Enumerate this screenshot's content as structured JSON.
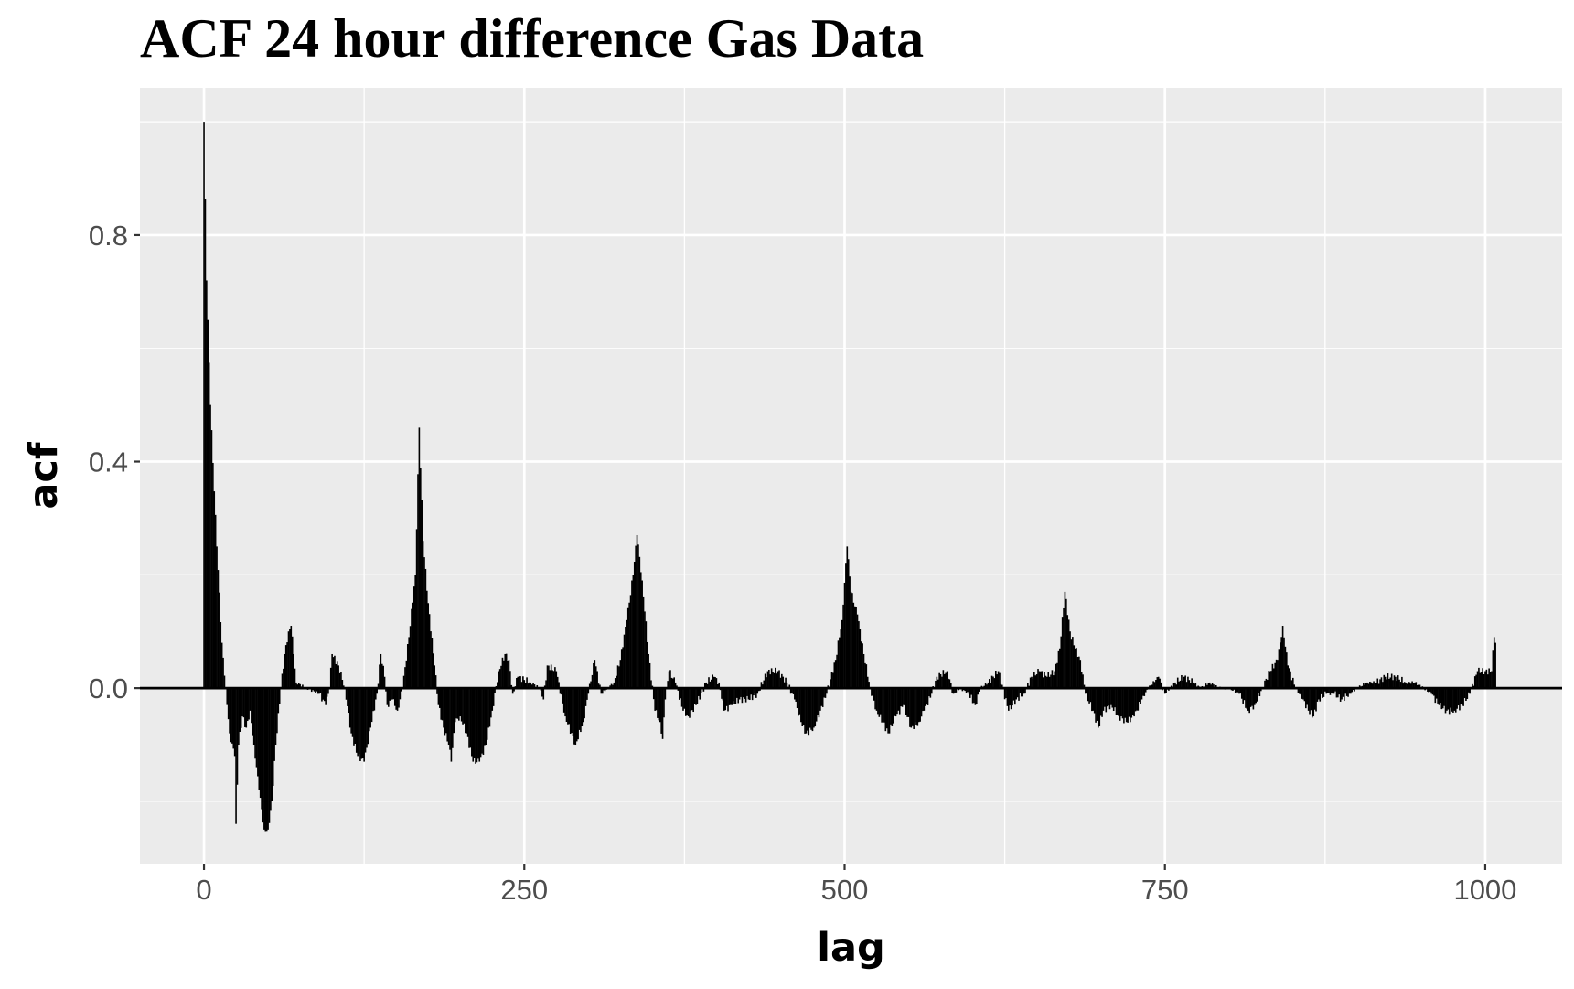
{
  "chart_data": {
    "type": "bar",
    "title": "ACF 24 hour difference Gas Data",
    "xlabel": "lag",
    "ylabel": "acf",
    "xlim": [
      -50,
      1060
    ],
    "ylim": [
      -0.31,
      1.06
    ],
    "x_ticks": [
      0,
      250,
      500,
      750,
      1000
    ],
    "x_tick_labels": [
      "0",
      "250",
      "500",
      "750",
      "1000"
    ],
    "y_ticks": [
      0.0,
      0.4,
      0.8
    ],
    "y_tick_labels": [
      "0.0",
      "0.4",
      "0.8"
    ],
    "grid": true,
    "legend": "none",
    "colors": {
      "bars": "#000000",
      "panel": "#ebebeb",
      "grid": "#ffffff"
    },
    "lags": "0-1008",
    "key_points": [
      [
        0,
        1.0
      ],
      [
        2,
        0.72
      ],
      [
        5,
        0.5
      ],
      [
        10,
        0.25
      ],
      [
        14,
        0.08
      ],
      [
        17,
        0.0
      ],
      [
        20,
        -0.08
      ],
      [
        24,
        -0.12
      ],
      [
        25,
        -0.24
      ],
      [
        27,
        -0.1
      ],
      [
        30,
        -0.05
      ],
      [
        33,
        -0.07
      ],
      [
        36,
        -0.04
      ],
      [
        39,
        -0.1
      ],
      [
        43,
        -0.18
      ],
      [
        47,
        -0.25
      ],
      [
        50,
        -0.25
      ],
      [
        53,
        -0.2
      ],
      [
        56,
        -0.1
      ],
      [
        60,
        0.0
      ],
      [
        63,
        0.06
      ],
      [
        66,
        0.1
      ],
      [
        68,
        0.11
      ],
      [
        70,
        0.06
      ],
      [
        72,
        0.01
      ],
      [
        80,
        0.0
      ],
      [
        90,
        -0.01
      ],
      [
        95,
        -0.03
      ],
      [
        98,
        0.0
      ],
      [
        100,
        0.06
      ],
      [
        105,
        0.04
      ],
      [
        110,
        0.0
      ],
      [
        115,
        -0.08
      ],
      [
        120,
        -0.12
      ],
      [
        125,
        -0.13
      ],
      [
        130,
        -0.07
      ],
      [
        135,
        -0.01
      ],
      [
        138,
        0.06
      ],
      [
        141,
        0.02
      ],
      [
        143,
        -0.03
      ],
      [
        147,
        -0.02
      ],
      [
        151,
        -0.04
      ],
      [
        155,
        0.0
      ],
      [
        160,
        0.09
      ],
      [
        165,
        0.2
      ],
      [
        168,
        0.46
      ],
      [
        171,
        0.26
      ],
      [
        175,
        0.15
      ],
      [
        180,
        0.04
      ],
      [
        183,
        -0.03
      ],
      [
        187,
        -0.07
      ],
      [
        191,
        -0.1
      ],
      [
        193,
        -0.13
      ],
      [
        196,
        -0.06
      ],
      [
        200,
        -0.05
      ],
      [
        205,
        -0.08
      ],
      [
        210,
        -0.13
      ],
      [
        215,
        -0.13
      ],
      [
        220,
        -0.1
      ],
      [
        225,
        -0.04
      ],
      [
        230,
        0.03
      ],
      [
        235,
        0.06
      ],
      [
        238,
        0.05
      ],
      [
        241,
        -0.01
      ],
      [
        245,
        0.02
      ],
      [
        255,
        0.01
      ],
      [
        262,
        0.0
      ],
      [
        265,
        -0.02
      ],
      [
        268,
        0.04
      ],
      [
        275,
        0.03
      ],
      [
        282,
        -0.05
      ],
      [
        290,
        -0.1
      ],
      [
        296,
        -0.06
      ],
      [
        300,
        -0.01
      ],
      [
        305,
        0.05
      ],
      [
        310,
        -0.01
      ],
      [
        315,
        0.0
      ],
      [
        320,
        0.01
      ],
      [
        325,
        0.05
      ],
      [
        330,
        0.12
      ],
      [
        335,
        0.2
      ],
      [
        338,
        0.27
      ],
      [
        342,
        0.19
      ],
      [
        347,
        0.06
      ],
      [
        352,
        -0.04
      ],
      [
        356,
        -0.06
      ],
      [
        358,
        -0.09
      ],
      [
        360,
        -0.02
      ],
      [
        363,
        0.03
      ],
      [
        368,
        0.01
      ],
      [
        374,
        -0.04
      ],
      [
        378,
        -0.05
      ],
      [
        384,
        -0.03
      ],
      [
        392,
        0.01
      ],
      [
        398,
        0.02
      ],
      [
        402,
        0.01
      ],
      [
        406,
        -0.04
      ],
      [
        412,
        -0.03
      ],
      [
        418,
        -0.02
      ],
      [
        425,
        -0.02
      ],
      [
        432,
        -0.01
      ],
      [
        440,
        0.03
      ],
      [
        448,
        0.03
      ],
      [
        455,
        0.01
      ],
      [
        461,
        -0.02
      ],
      [
        466,
        -0.06
      ],
      [
        470,
        -0.08
      ],
      [
        476,
        -0.07
      ],
      [
        481,
        -0.04
      ],
      [
        486,
        -0.01
      ],
      [
        493,
        0.05
      ],
      [
        498,
        0.12
      ],
      [
        502,
        0.25
      ],
      [
        505,
        0.17
      ],
      [
        510,
        0.13
      ],
      [
        515,
        0.06
      ],
      [
        520,
        0.0
      ],
      [
        525,
        -0.04
      ],
      [
        530,
        -0.06
      ],
      [
        534,
        -0.08
      ],
      [
        540,
        -0.05
      ],
      [
        546,
        -0.03
      ],
      [
        552,
        -0.07
      ],
      [
        558,
        -0.06
      ],
      [
        562,
        -0.04
      ],
      [
        568,
        -0.01
      ],
      [
        572,
        0.02
      ],
      [
        580,
        0.03
      ],
      [
        585,
        -0.01
      ],
      [
        590,
        0.0
      ],
      [
        597,
        -0.01
      ],
      [
        602,
        -0.03
      ],
      [
        606,
        0.0
      ],
      [
        612,
        0.01
      ],
      [
        620,
        0.03
      ],
      [
        628,
        -0.04
      ],
      [
        634,
        -0.02
      ],
      [
        640,
        -0.01
      ],
      [
        646,
        0.02
      ],
      [
        652,
        0.03
      ],
      [
        658,
        0.02
      ],
      [
        664,
        0.03
      ],
      [
        668,
        0.07
      ],
      [
        672,
        0.17
      ],
      [
        676,
        0.1
      ],
      [
        680,
        0.07
      ],
      [
        684,
        0.05
      ],
      [
        688,
        -0.01
      ],
      [
        694,
        -0.04
      ],
      [
        698,
        -0.07
      ],
      [
        702,
        -0.04
      ],
      [
        708,
        -0.03
      ],
      [
        714,
        -0.05
      ],
      [
        720,
        -0.06
      ],
      [
        726,
        -0.05
      ],
      [
        732,
        -0.02
      ],
      [
        737,
        0.0
      ],
      [
        745,
        0.02
      ],
      [
        750,
        -0.01
      ],
      [
        758,
        0.01
      ],
      [
        765,
        0.02
      ],
      [
        772,
        0.01
      ],
      [
        778,
        0.0
      ],
      [
        785,
        0.01
      ],
      [
        792,
        0.0
      ],
      [
        800,
        0.0
      ],
      [
        808,
        -0.01
      ],
      [
        815,
        -0.04
      ],
      [
        820,
        -0.03
      ],
      [
        826,
        0.0
      ],
      [
        832,
        0.03
      ],
      [
        838,
        0.05
      ],
      [
        842,
        0.11
      ],
      [
        846,
        0.04
      ],
      [
        852,
        0.0
      ],
      [
        858,
        -0.02
      ],
      [
        862,
        -0.04
      ],
      [
        866,
        -0.05
      ],
      [
        870,
        -0.02
      ],
      [
        876,
        -0.01
      ],
      [
        882,
        -0.01
      ],
      [
        888,
        -0.02
      ],
      [
        894,
        -0.01
      ],
      [
        900,
        0.0
      ],
      [
        908,
        0.01
      ],
      [
        915,
        0.01
      ],
      [
        922,
        0.02
      ],
      [
        930,
        0.02
      ],
      [
        938,
        0.01
      ],
      [
        945,
        0.01
      ],
      [
        952,
        0.0
      ],
      [
        958,
        -0.01
      ],
      [
        964,
        -0.03
      ],
      [
        970,
        -0.04
      ],
      [
        976,
        -0.04
      ],
      [
        982,
        -0.03
      ],
      [
        988,
        -0.01
      ],
      [
        994,
        0.03
      ],
      [
        1000,
        0.03
      ],
      [
        1005,
        0.03
      ],
      [
        1007,
        0.09
      ],
      [
        1008,
        0.08
      ]
    ]
  }
}
